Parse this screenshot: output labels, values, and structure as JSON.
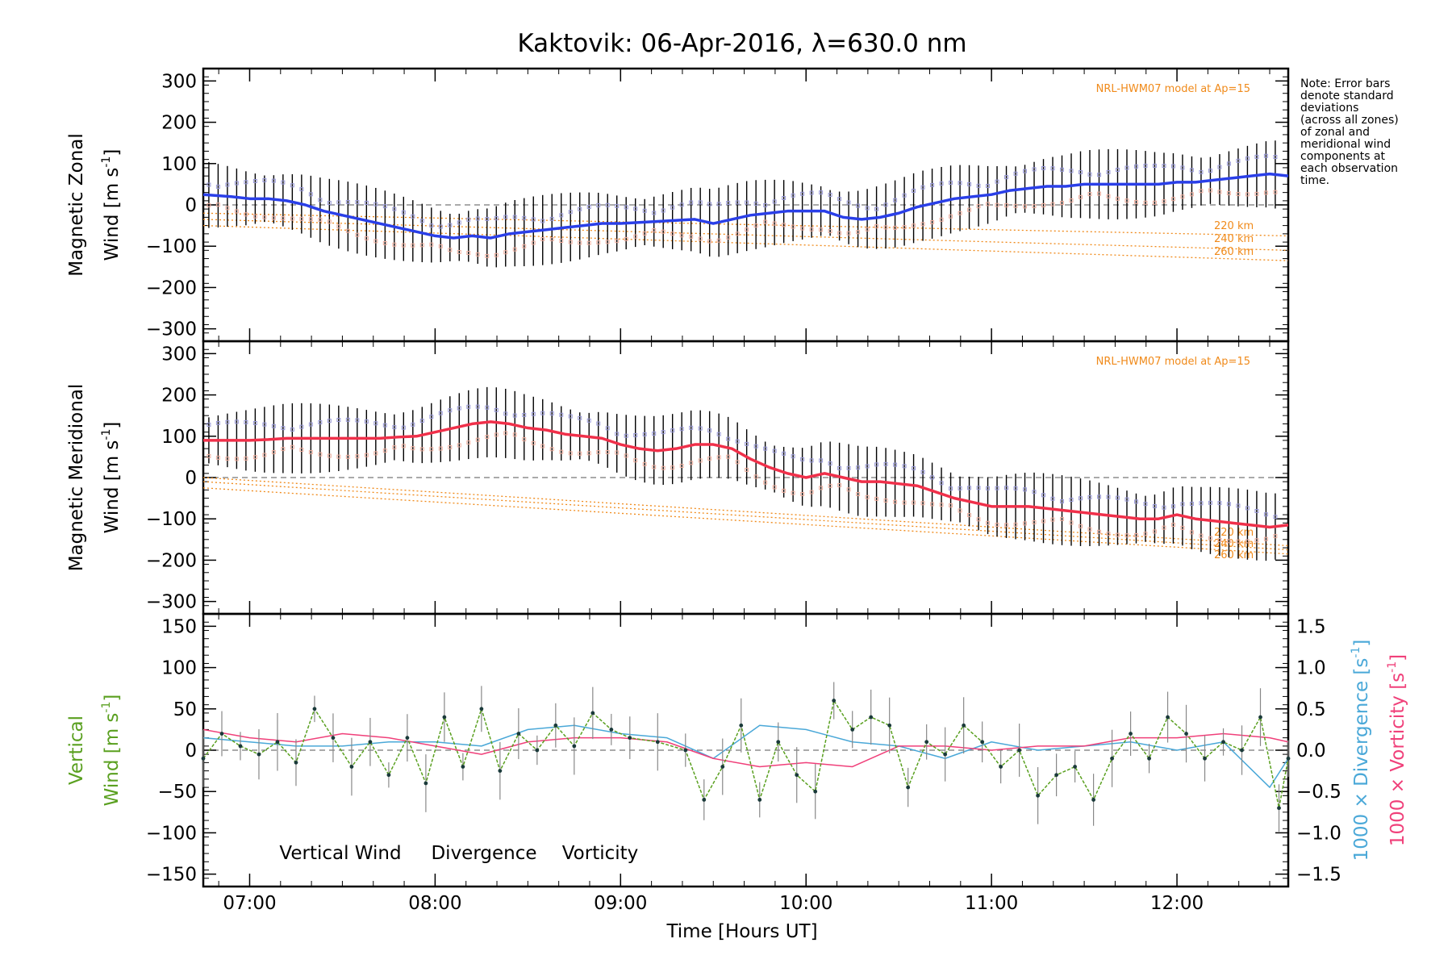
{
  "figure": {
    "title": "Kaktovik: 06-Apr-2016, λ=630.0 nm",
    "note": [
      "Note: Error bars",
      "denote standard",
      "deviations",
      "(across all zones)",
      "of zonal and",
      "meridional wind",
      "components at",
      "each observation",
      "time."
    ],
    "xlabel": "Time [Hours UT]",
    "xticks": [
      "07:00",
      "08:00",
      "09:00",
      "10:00",
      "11:00",
      "12:00"
    ],
    "colors": {
      "zonal": "#2a3fe8",
      "meridional": "#f0304a",
      "model": "#f08a1a",
      "vertical": "#5aa020",
      "divergence": "#4aa8d8",
      "vorticity": "#f0407a",
      "zone_marker": "#9a9ad8",
      "zone_marker_alt": "#f0b0a0",
      "error_bar": "#000000"
    }
  },
  "panel_zonal": {
    "ylabel_line1": "Magnetic Zonal",
    "ylabel_line2": "Wind [m s",
    "ylabel_sup": "-1",
    "ylabel_end": "]",
    "yticks": [
      "300",
      "200",
      "100",
      "0",
      "−100",
      "−200",
      "−300"
    ],
    "model_label": "NRL-HWM07 model at Ap=15",
    "model_heights": [
      "220 km",
      "240 km",
      "260 km"
    ]
  },
  "panel_meridional": {
    "ylabel_line1": "Magnetic Meridional",
    "ylabel_line2": "Wind [m s",
    "ylabel_sup": "-1",
    "ylabel_end": "]",
    "yticks": [
      "300",
      "200",
      "100",
      "0",
      "−100",
      "−200",
      "−300"
    ],
    "model_label": "NRL-HWM07 model at Ap=15",
    "model_heights": [
      "220 km",
      "240 km",
      "260 km"
    ]
  },
  "panel_vertical": {
    "ylabel_line1": "Vertical",
    "ylabel_line2": "Wind [m s",
    "ylabel_sup": "-1",
    "ylabel_end": "]",
    "yticks": [
      "150",
      "100",
      "50",
      "0",
      "−50",
      "−100",
      "−150"
    ],
    "right_yticks": [
      "1.5",
      "1.0",
      "0.5",
      "0.0",
      "−0.5",
      "−1.0",
      "−1.5"
    ],
    "right_label_div": "1000 × Divergence [s",
    "right_label_vort": "1000 × Vorticity [s",
    "right_label_sup": "-1",
    "right_label_end": "]",
    "legend": [
      "Vertical Wind",
      "Divergence",
      "Vorticity"
    ]
  },
  "chart_data": [
    {
      "type": "line",
      "title": "Kaktovik: 06-Apr-2016, λ=630.0 nm",
      "xlabel": "Time [Hours UT]",
      "ylabel": "Magnetic Zonal Wind [m s-1]",
      "x_unit": "hours UT",
      "xlim": [
        6.75,
        12.6
      ],
      "ylim": [
        -330,
        330
      ],
      "series": [
        {
          "name": "Zonal wind",
          "x": [
            6.75,
            6.9,
            7.0,
            7.1,
            7.2,
            7.3,
            7.4,
            7.5,
            7.6,
            7.7,
            7.8,
            7.9,
            8.0,
            8.1,
            8.2,
            8.3,
            8.4,
            8.5,
            8.6,
            8.7,
            8.8,
            8.9,
            9.0,
            9.2,
            9.4,
            9.5,
            9.6,
            9.7,
            9.8,
            9.9,
            10.0,
            10.1,
            10.2,
            10.3,
            10.4,
            10.5,
            10.6,
            10.7,
            10.8,
            10.9,
            11.0,
            11.1,
            11.2,
            11.3,
            11.4,
            11.5,
            11.6,
            11.7,
            11.8,
            11.9,
            12.0,
            12.1,
            12.2,
            12.3,
            12.4,
            12.5,
            12.6
          ],
          "y": [
            25,
            20,
            15,
            15,
            10,
            0,
            -15,
            -25,
            -35,
            -45,
            -55,
            -65,
            -75,
            -80,
            -75,
            -80,
            -70,
            -65,
            -60,
            -55,
            -50,
            -45,
            -45,
            -40,
            -35,
            -45,
            -35,
            -25,
            -20,
            -15,
            -15,
            -15,
            -30,
            -35,
            -30,
            -20,
            -5,
            5,
            15,
            20,
            25,
            35,
            40,
            45,
            45,
            50,
            50,
            50,
            50,
            50,
            55,
            55,
            60,
            65,
            70,
            75,
            70
          ]
        },
        {
          "name": "220 km",
          "x": [
            6.75,
            12.6
          ],
          "y": [
            -20,
            -75
          ]
        },
        {
          "name": "240 km",
          "x": [
            6.75,
            12.6
          ],
          "y": [
            -35,
            -110
          ]
        },
        {
          "name": "260 km",
          "x": [
            6.75,
            12.6
          ],
          "y": [
            -50,
            -135
          ]
        }
      ]
    },
    {
      "type": "line",
      "xlabel": "Time [Hours UT]",
      "ylabel": "Magnetic Meridional Wind [m s-1]",
      "x_unit": "hours UT",
      "xlim": [
        6.75,
        12.6
      ],
      "ylim": [
        -330,
        330
      ],
      "series": [
        {
          "name": "Meridional wind",
          "x": [
            6.75,
            6.9,
            7.0,
            7.1,
            7.2,
            7.3,
            7.4,
            7.5,
            7.6,
            7.7,
            7.8,
            7.9,
            8.0,
            8.1,
            8.2,
            8.3,
            8.4,
            8.5,
            8.6,
            8.7,
            8.8,
            8.9,
            9.0,
            9.1,
            9.2,
            9.3,
            9.4,
            9.5,
            9.6,
            9.7,
            9.8,
            9.9,
            10.0,
            10.1,
            10.2,
            10.3,
            10.4,
            10.5,
            10.6,
            10.7,
            10.8,
            10.9,
            11.0,
            11.1,
            11.2,
            11.3,
            11.4,
            11.5,
            11.6,
            11.7,
            11.8,
            11.9,
            12.0,
            12.1,
            12.2,
            12.3,
            12.4,
            12.5,
            12.6
          ],
          "y": [
            90,
            90,
            90,
            92,
            95,
            95,
            95,
            95,
            95,
            95,
            98,
            100,
            110,
            120,
            130,
            135,
            130,
            120,
            115,
            105,
            100,
            95,
            80,
            70,
            65,
            70,
            80,
            80,
            70,
            45,
            25,
            10,
            0,
            10,
            0,
            -10,
            -10,
            -15,
            -20,
            -35,
            -50,
            -60,
            -70,
            -70,
            -70,
            -75,
            -80,
            -85,
            -90,
            -95,
            -100,
            -100,
            -90,
            -100,
            -105,
            -110,
            -115,
            -120,
            -115
          ]
        },
        {
          "name": "220 km",
          "x": [
            6.75,
            12.6
          ],
          "y": [
            0,
            -165
          ]
        },
        {
          "name": "240 km",
          "x": [
            6.75,
            12.6
          ],
          "y": [
            -10,
            -175
          ]
        },
        {
          "name": "260 km",
          "x": [
            6.75,
            12.6
          ],
          "y": [
            -25,
            -185
          ]
        }
      ]
    },
    {
      "type": "line",
      "xlabel": "Time [Hours UT]",
      "ylabel": "Vertical Wind [m s-1]",
      "y2label": "1000 × Divergence / Vorticity [s-1]",
      "x_unit": "hours UT",
      "xlim": [
        6.75,
        12.6
      ],
      "ylim": [
        -165,
        165
      ],
      "y2lim": [
        -1.65,
        1.65
      ],
      "legend": [
        "Vertical Wind",
        "Divergence",
        "Vorticity"
      ],
      "series": [
        {
          "name": "Vertical Wind",
          "x": [
            6.75,
            6.85,
            6.95,
            7.05,
            7.15,
            7.25,
            7.35,
            7.45,
            7.55,
            7.65,
            7.75,
            7.85,
            7.95,
            8.05,
            8.15,
            8.25,
            8.35,
            8.45,
            8.55,
            8.65,
            8.75,
            8.85,
            8.95,
            9.05,
            9.2,
            9.35,
            9.45,
            9.55,
            9.65,
            9.75,
            9.85,
            9.95,
            10.05,
            10.15,
            10.25,
            10.35,
            10.45,
            10.55,
            10.65,
            10.75,
            10.85,
            10.95,
            11.05,
            11.15,
            11.25,
            11.35,
            11.45,
            11.55,
            11.65,
            11.75,
            11.85,
            11.95,
            12.05,
            12.15,
            12.25,
            12.35,
            12.45,
            12.55,
            12.6
          ],
          "y": [
            -10,
            20,
            5,
            -5,
            10,
            -15,
            50,
            15,
            -20,
            10,
            -30,
            15,
            -40,
            40,
            -20,
            50,
            -25,
            20,
            0,
            30,
            5,
            45,
            25,
            15,
            10,
            0,
            -60,
            -20,
            30,
            -60,
            10,
            -30,
            -50,
            60,
            25,
            40,
            30,
            -45,
            10,
            -5,
            30,
            10,
            -20,
            0,
            -55,
            -30,
            -20,
            -60,
            -10,
            20,
            -10,
            40,
            20,
            -10,
            10,
            0,
            40,
            -70,
            -10
          ]
        },
        {
          "name": "Divergence",
          "x": [
            6.75,
            7.0,
            7.25,
            7.5,
            7.75,
            8.0,
            8.25,
            8.5,
            8.75,
            9.0,
            9.25,
            9.5,
            9.75,
            10.0,
            10.25,
            10.5,
            10.75,
            11.0,
            11.25,
            11.5,
            11.75,
            12.0,
            12.25,
            12.5,
            12.6
          ],
          "y": [
            0.15,
            0.1,
            0.05,
            0.05,
            0.1,
            0.1,
            0.05,
            0.25,
            0.3,
            0.2,
            0.15,
            -0.1,
            0.3,
            0.25,
            0.1,
            0.05,
            -0.1,
            0.1,
            0.0,
            0.05,
            0.1,
            0.0,
            0.1,
            -0.45,
            -0.1
          ]
        },
        {
          "name": "Vorticity",
          "x": [
            6.75,
            7.0,
            7.25,
            7.5,
            7.75,
            8.0,
            8.25,
            8.5,
            8.75,
            9.0,
            9.25,
            9.5,
            9.75,
            10.0,
            10.25,
            10.5,
            10.75,
            11.0,
            11.25,
            11.5,
            11.75,
            12.0,
            12.25,
            12.5,
            12.6
          ],
          "y": [
            0.25,
            0.15,
            0.1,
            0.2,
            0.15,
            0.05,
            -0.05,
            0.1,
            0.15,
            0.15,
            0.1,
            -0.1,
            -0.2,
            -0.15,
            -0.2,
            0.05,
            0.05,
            0.0,
            0.05,
            0.05,
            0.15,
            0.15,
            0.2,
            0.15,
            0.1
          ]
        }
      ]
    }
  ]
}
